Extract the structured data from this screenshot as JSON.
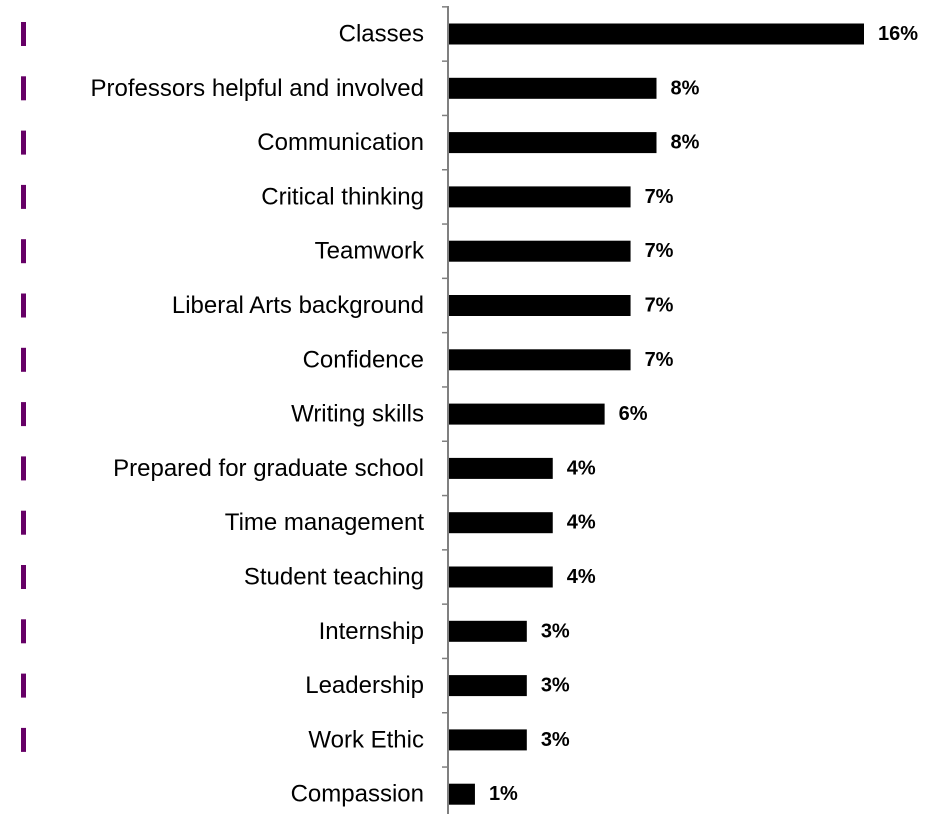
{
  "chart_data": {
    "type": "bar",
    "orientation": "horizontal",
    "categories": [
      "Classes",
      "Professors helpful and involved",
      "Communication",
      "Critical thinking",
      "Teamwork",
      "Liberal Arts background",
      "Confidence",
      "Writing skills",
      "Prepared for graduate school",
      "Time management",
      "Student teaching",
      "Internship",
      "Leadership",
      "Work Ethic",
      "Compassion"
    ],
    "values": [
      16,
      8,
      8,
      7,
      7,
      7,
      7,
      6,
      4,
      4,
      4,
      3,
      3,
      3,
      1
    ],
    "value_labels": [
      "16%",
      "8%",
      "8%",
      "7%",
      "7%",
      "7%",
      "7%",
      "6%",
      "4%",
      "4%",
      "4%",
      "3%",
      "3%",
      "3%",
      "1%"
    ],
    "unit": "%",
    "title": "",
    "xlabel": "",
    "ylabel": "",
    "xlim": [
      0,
      16
    ],
    "grid": false,
    "legend": "none",
    "colors": {
      "bar": "#000000",
      "axis": "#808080",
      "marker": "#660066"
    }
  }
}
